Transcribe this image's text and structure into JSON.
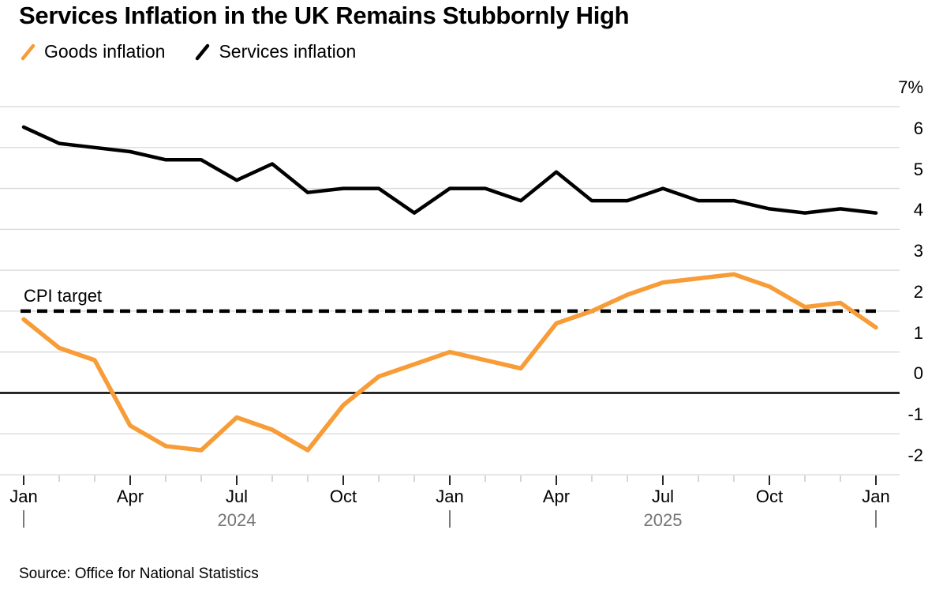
{
  "title": "Services Inflation in the UK Remains Stubbornly High",
  "legend": [
    {
      "label": "Goods inflation",
      "color": "#F79C36"
    },
    {
      "label": "Services inflation",
      "color": "#000000"
    }
  ],
  "annotations": {
    "cpi_target_label": "CPI target",
    "cpi_target_value": 2
  },
  "source": "Source: Office for National Statistics",
  "colors": {
    "goods_line": "#F79C36",
    "services_line": "#000000",
    "gridline": "#d8d8d8",
    "zero_line": "#000000",
    "cpi_dash": "#000000",
    "minor_tick": "#c0c0c0",
    "major_tick": "#000000",
    "year_text": "#757575"
  },
  "chart_data": {
    "type": "line",
    "x": [
      "Jan 2024",
      "Feb 2024",
      "Mar 2024",
      "Apr 2024",
      "May 2024",
      "Jun 2024",
      "Jul 2024",
      "Aug 2024",
      "Sep 2024",
      "Oct 2024",
      "Nov 2024",
      "Dec 2024",
      "Jan 2025",
      "Feb 2025",
      "Mar 2025",
      "Apr 2025",
      "May 2025",
      "Jun 2025",
      "Jul 2025",
      "Aug 2025",
      "Sep 2025",
      "Oct 2025",
      "Nov 2025",
      "Dec 2025",
      "Jan 2026"
    ],
    "series": [
      {
        "name": "Goods inflation",
        "color": "#F79C36",
        "values": [
          1.8,
          1.1,
          0.8,
          -0.8,
          -1.3,
          -1.4,
          -0.6,
          -0.9,
          -1.4,
          -0.3,
          0.4,
          0.7,
          1.0,
          0.8,
          0.6,
          1.7,
          2.0,
          2.4,
          2.7,
          2.8,
          2.9,
          2.6,
          2.1,
          2.2,
          1.6
        ]
      },
      {
        "name": "Services inflation",
        "color": "#000000",
        "values": [
          6.5,
          6.1,
          6.0,
          5.9,
          5.7,
          5.7,
          5.2,
          5.6,
          4.9,
          5.0,
          5.0,
          4.4,
          5.0,
          5.0,
          4.7,
          5.4,
          4.7,
          4.7,
          5.0,
          4.7,
          4.7,
          4.5,
          4.4,
          4.5,
          4.4
        ]
      }
    ],
    "ylabel": "",
    "xlabel": "",
    "ylim": [
      -2.5,
      7
    ],
    "yticks": [
      7,
      6,
      5,
      4,
      3,
      2,
      1,
      0,
      -1,
      -2
    ],
    "ytick_top_label": "7%",
    "xtick_major_labels": [
      "Jan",
      "Apr",
      "Jul",
      "Oct",
      "Jan",
      "Apr",
      "Jul",
      "Oct",
      "Jan"
    ],
    "year_labels": [
      {
        "text": "2024",
        "center_month_index": 6
      },
      {
        "text": "2025",
        "center_month_index": 18
      }
    ],
    "year_separator_month_indices": [
      0,
      12,
      24
    ],
    "reference_lines": [
      {
        "name": "zero",
        "value": 0,
        "style": "solid"
      },
      {
        "name": "cpi-target",
        "value": 2,
        "style": "dashed"
      }
    ],
    "grid": true,
    "legend_position": "top-left"
  }
}
